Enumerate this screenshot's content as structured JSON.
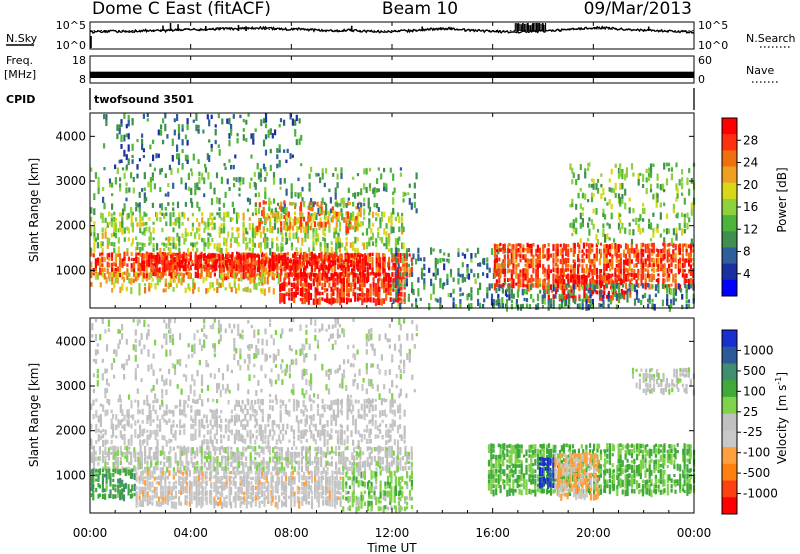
{
  "header": {
    "station": "Dome C East (fitACF)",
    "beam": "Beam 10",
    "date": "09/Mar/2013"
  },
  "nsky_panel": {
    "left_label": "N.Sky",
    "left_ticks": [
      "10^5",
      "10^0"
    ],
    "right_label": "N.Search",
    "right_ticks": [
      "10^5",
      "10^0"
    ],
    "nsky_series": [
      6.4,
      6.5,
      6.7,
      6.6,
      6.8,
      7.0,
      6.9,
      7.2,
      7.4,
      7.3,
      7.5,
      7.8,
      7.6,
      7.9,
      8.1,
      7.7,
      7.5,
      7.6,
      7.2,
      7.0,
      6.9,
      7.1,
      6.8,
      6.6,
      6.5,
      6.7,
      6.9,
      7.3,
      7.6,
      7.8,
      7.4,
      7.0,
      6.8,
      6.6,
      6.4,
      6.5,
      6.6,
      6.8,
      7.1,
      7.4,
      7.8,
      8.2,
      8.0,
      7.6,
      7.3,
      7.1,
      6.9,
      6.7,
      6.5,
      6.4
    ],
    "nsearch_series": [
      6.9,
      7.0,
      7.0,
      6.9,
      7.1,
      7.2,
      7.3,
      7.2,
      7.4,
      7.5,
      7.4,
      7.6,
      7.7,
      7.6,
      7.5,
      7.4,
      7.3,
      7.4,
      7.2,
      7.1,
      7.0,
      7.1,
      7.0,
      6.9,
      6.9,
      7.0,
      7.1,
      7.2,
      7.3,
      7.4,
      7.3,
      7.2,
      7.1,
      7.0,
      6.9,
      7.0,
      7.0,
      7.1,
      7.2,
      7.3,
      7.5,
      7.7,
      7.6,
      7.4,
      7.3,
      7.2,
      7.1,
      7.0,
      6.9,
      6.9
    ],
    "nsky_spikes": [
      {
        "hour": 2.9,
        "value": 9.0
      },
      {
        "hour": 3.2,
        "value": 10.0
      },
      {
        "hour": 3.5,
        "value": 9.5
      },
      {
        "hour": 4.6,
        "value": 8.8
      },
      {
        "hour": 5.9,
        "value": 9.2
      },
      {
        "hour": 6.2,
        "value": 8.7
      },
      {
        "hour": 10.4,
        "value": 8.9
      },
      {
        "hour": 13.2,
        "value": 8.6
      },
      {
        "hour": 17.0,
        "value": 9.6
      },
      {
        "hour": 17.2,
        "value": 10.2
      },
      {
        "hour": 17.4,
        "value": 10.4
      },
      {
        "hour": 17.6,
        "value": 10.1
      },
      {
        "hour": 17.8,
        "value": 10.3
      },
      {
        "hour": 18.0,
        "value": 9.9
      },
      {
        "hour": 22.2,
        "value": 8.6
      }
    ]
  },
  "freq_panel": {
    "left_label_1": "Freq.",
    "left_label_2": "[MHz]",
    "left_ticks": [
      "18",
      "8"
    ],
    "left_range": [
      8,
      18
    ],
    "freq_value": 10.4,
    "right_label": "Nave",
    "right_ticks": [
      "60",
      "0"
    ],
    "right_range": [
      0,
      60
    ],
    "nave_value": 20
  },
  "cpid_panel": {
    "label": "CPID",
    "value_text": "twofsound 3501"
  },
  "power_panel": {
    "ylabel": "Slant Range [km]",
    "yticks": [
      "4000",
      "3000",
      "2000",
      "1000"
    ],
    "colorbar_label": "Power [dB]",
    "colorbar_ticks": [
      "28",
      "24",
      "20",
      "16",
      "12",
      "8",
      "4"
    ],
    "colorbar_colors": [
      "#0000ff",
      "#1a2fa0",
      "#2e5f9a",
      "#3f8f4f",
      "#4cb43c",
      "#8cd23c",
      "#d8d818",
      "#f0a020",
      "#f07010",
      "#ff3010",
      "#ff0000"
    ]
  },
  "velocity_panel": {
    "ylabel": "Slant Range [km]",
    "yticks": [
      "4000",
      "3000",
      "2000",
      "1000"
    ],
    "colorbar_label": "Velocity [m s-1]",
    "colorbar_label_main": "Velocity",
    "colorbar_unit_main": "[m s",
    "colorbar_unit_exp": "-1",
    "colorbar_unit_tail": "]",
    "colorbar_ticks": [
      "1000",
      "500",
      "100",
      "25",
      "-25",
      "-100",
      "-500",
      "-1000"
    ],
    "colorbar_colors": [
      "#ff0000",
      "#ff4010",
      "#ff7f10",
      "#ff9f40",
      "#c8c8c8",
      "#c0c0c0",
      "#7fd24a",
      "#3faa3a",
      "#3f8f6f",
      "#2b5a9a",
      "#1a2fd0"
    ]
  },
  "x_axis": {
    "label": "Time UT",
    "ticks": [
      "00:00",
      "04:00",
      "08:00",
      "12:00",
      "16:00",
      "20:00",
      "00:00"
    ]
  },
  "chart_data": {
    "type": "heatmap",
    "title": "Dome C East (fitACF) Beam 10 09/Mar/2013",
    "xlabel": "Time UT",
    "ylabel": "Slant Range [km]",
    "x_range_hours": [
      0,
      24
    ],
    "y_range_km": [
      180,
      4500
    ],
    "power_scale_db": [
      0,
      32
    ],
    "velocity_scale_ms": [
      -1000,
      1000
    ],
    "power_regions": [
      {
        "t0": 0.0,
        "t1": 12.8,
        "r0": 950,
        "r1": 1400,
        "power": 27,
        "density": 0.75
      },
      {
        "t0": 2.0,
        "t1": 11.0,
        "r0": 1100,
        "r1": 1350,
        "power": 30,
        "density": 0.8
      },
      {
        "t0": 7.5,
        "t1": 12.5,
        "r0": 350,
        "r1": 950,
        "power": 29,
        "density": 0.8
      },
      {
        "t0": 0.0,
        "t1": 7.5,
        "r0": 600,
        "r1": 950,
        "power": 20,
        "density": 0.35
      },
      {
        "t0": 0.0,
        "t1": 12.5,
        "r0": 1450,
        "r1": 2300,
        "power": 16,
        "density": 0.4
      },
      {
        "t0": 6.5,
        "t1": 10.8,
        "r0": 1900,
        "r1": 2550,
        "power": 24,
        "density": 0.45
      },
      {
        "t0": 0.0,
        "t1": 13.0,
        "r0": 2400,
        "r1": 3300,
        "power": 12,
        "density": 0.2
      },
      {
        "t0": 0.5,
        "t1": 8.5,
        "r0": 3300,
        "r1": 4500,
        "power": 9,
        "density": 0.16
      },
      {
        "t0": 12.0,
        "t1": 16.5,
        "r0": 250,
        "r1": 1500,
        "power": 10,
        "density": 0.25
      },
      {
        "t0": 16.0,
        "t1": 24.0,
        "r0": 700,
        "r1": 1600,
        "power": 27,
        "density": 0.75
      },
      {
        "t0": 18.0,
        "t1": 21.5,
        "r0": 400,
        "r1": 900,
        "power": 29,
        "density": 0.65
      },
      {
        "t0": 16.0,
        "t1": 24.0,
        "r0": 250,
        "r1": 700,
        "power": 10,
        "density": 0.4
      },
      {
        "t0": 19.0,
        "t1": 24.0,
        "r0": 1700,
        "r1": 3400,
        "power": 14,
        "density": 0.25
      }
    ],
    "velocity_regions": [
      {
        "t0": 0.0,
        "t1": 12.8,
        "r0": 1150,
        "r1": 1650,
        "velocity": 0,
        "density": 0.75
      },
      {
        "t0": 0.0,
        "t1": 1.8,
        "r0": 500,
        "r1": 1150,
        "velocity": 400,
        "density": 0.7
      },
      {
        "t0": 1.8,
        "t1": 10.0,
        "r0": 400,
        "r1": 1100,
        "velocity": -150,
        "density": 0.85
      },
      {
        "t0": 10.0,
        "t1": 12.8,
        "r0": 300,
        "r1": 1100,
        "velocity": 200,
        "density": 0.6
      },
      {
        "t0": 0.0,
        "t1": 12.5,
        "r0": 1700,
        "r1": 2700,
        "velocity": -80,
        "density": 0.4
      },
      {
        "t0": 0.0,
        "t1": 13.0,
        "r0": 2700,
        "r1": 4500,
        "velocity": 0,
        "density": 0.18
      },
      {
        "t0": 15.8,
        "t1": 24.0,
        "r0": 600,
        "r1": 1700,
        "velocity": 300,
        "density": 0.75
      },
      {
        "t0": 17.8,
        "t1": 18.4,
        "r0": 800,
        "r1": 1400,
        "velocity": 900,
        "density": 0.85
      },
      {
        "t0": 18.4,
        "t1": 20.2,
        "r0": 500,
        "r1": 1500,
        "velocity": -300,
        "density": 0.8
      },
      {
        "t0": 21.5,
        "t1": 24.0,
        "r0": 2900,
        "r1": 3400,
        "velocity": 0,
        "density": 0.55
      }
    ]
  }
}
